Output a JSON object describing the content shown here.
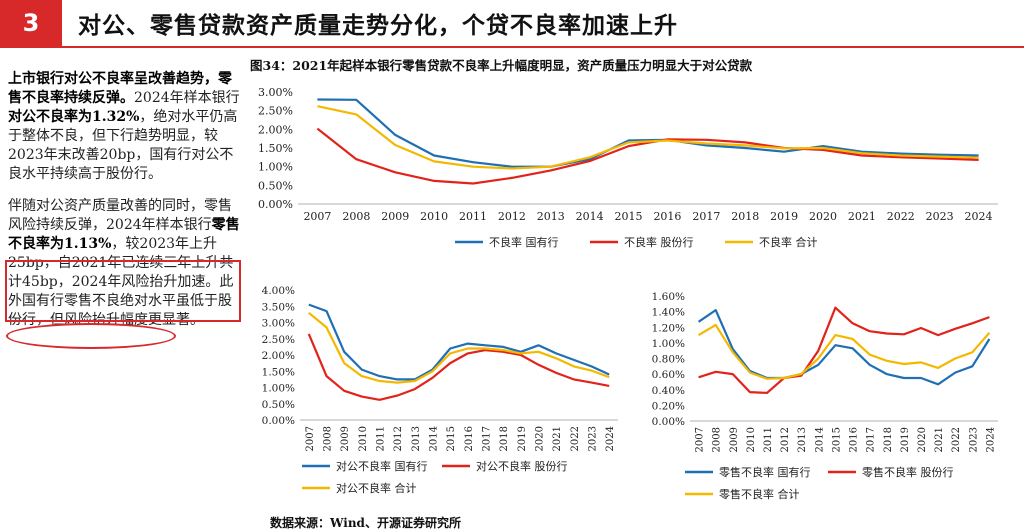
{
  "header": {
    "number": "3",
    "title": "对公、零售贷款资产质量走势分化，个贷不良率加速上升"
  },
  "text": {
    "p1_bold1": "上市银行对公不良率呈改善趋势，零售不良率持续反弹。",
    "p1_t1": "2024年样本银行",
    "p1_bold2": "对公不良率为1.32%",
    "p1_t2": "，绝对水平仍高于整体不良，但下行趋势明显，较2023年末改善20bp，国有行对公不良水平持续高于股份行。",
    "p2_t1": "伴随对公资产质量改善的同时，零售风险持续反弹，2024年样本银行",
    "p2_bold1": "零售不良率为1.13%",
    "p2_t2": "，较2023年上升25bp，自2021年已连续三年上升共计45bp，2024年风险抬升加速。此外国有行零售不良绝对水平虽低于股份行，但风险抬升幅度更显著。"
  },
  "figure_title": "图34：2021年起样本银行零售贷款不良率上升幅度明显，资产质量压力明显大于对公贷款",
  "source": "数据来源：Wind、开源证券研究所",
  "colors": {
    "state": "#1f6fb5",
    "joint": "#e2231a",
    "total": "#f4b800",
    "accent": "#d7282a"
  },
  "chart_data": [
    {
      "type": "line",
      "x": [
        "2007",
        "2008",
        "2009",
        "2010",
        "2011",
        "2012",
        "2013",
        "2014",
        "2015",
        "2016",
        "2017",
        "2018",
        "2019",
        "2020",
        "2021",
        "2022",
        "2023",
        "2024"
      ],
      "ylim": [
        0,
        3.0
      ],
      "yticks": [
        "0.00%",
        "0.50%",
        "1.00%",
        "1.50%",
        "2.00%",
        "2.50%",
        "3.00%"
      ],
      "series": [
        {
          "name": "不良率 国有行",
          "values": [
            2.8,
            2.79,
            1.85,
            1.3,
            1.12,
            1.0,
            1.0,
            1.2,
            1.7,
            1.72,
            1.57,
            1.5,
            1.4,
            1.55,
            1.4,
            1.35,
            1.32,
            1.3
          ]
        },
        {
          "name": "不良率 股份行",
          "values": [
            2.02,
            1.2,
            0.85,
            0.62,
            0.55,
            0.7,
            0.9,
            1.15,
            1.55,
            1.73,
            1.72,
            1.65,
            1.5,
            1.45,
            1.3,
            1.25,
            1.22,
            1.18
          ]
        },
        {
          "name": "不良率 合计",
          "values": [
            2.62,
            2.4,
            1.58,
            1.14,
            1.0,
            0.95,
            1.0,
            1.25,
            1.65,
            1.7,
            1.62,
            1.57,
            1.49,
            1.5,
            1.36,
            1.3,
            1.27,
            1.24
          ]
        }
      ],
      "legend": "bottom"
    },
    {
      "type": "line",
      "x": [
        "2007",
        "2008",
        "2009",
        "2010",
        "2011",
        "2012",
        "2013",
        "2014",
        "2015",
        "2016",
        "2017",
        "2018",
        "2019",
        "2020",
        "2021",
        "2022",
        "2023",
        "2024"
      ],
      "ylim": [
        0,
        4.0
      ],
      "yticks": [
        "0.00%",
        "0.50%",
        "1.00%",
        "1.50%",
        "2.00%",
        "2.50%",
        "3.00%",
        "3.50%",
        "4.00%"
      ],
      "series": [
        {
          "name": "对公不良率 国有行",
          "values": [
            3.55,
            3.35,
            2.1,
            1.55,
            1.35,
            1.25,
            1.25,
            1.55,
            2.2,
            2.35,
            2.3,
            2.25,
            2.1,
            2.3,
            2.05,
            1.85,
            1.65,
            1.4
          ]
        },
        {
          "name": "对公不良率 股份行",
          "values": [
            2.65,
            1.35,
            0.9,
            0.72,
            0.62,
            0.75,
            0.95,
            1.3,
            1.75,
            2.05,
            2.15,
            2.1,
            2.0,
            1.7,
            1.45,
            1.25,
            1.15,
            1.05
          ]
        },
        {
          "name": "对公不良率 合计",
          "values": [
            3.3,
            2.85,
            1.75,
            1.35,
            1.2,
            1.15,
            1.2,
            1.5,
            2.05,
            2.2,
            2.2,
            2.15,
            2.05,
            2.1,
            1.9,
            1.65,
            1.52,
            1.32
          ]
        }
      ],
      "legend": "bottom"
    },
    {
      "type": "line",
      "x": [
        "2007",
        "2008",
        "2009",
        "2010",
        "2011",
        "2012",
        "2013",
        "2014",
        "2015",
        "2016",
        "2017",
        "2018",
        "2019",
        "2020",
        "2021",
        "2022",
        "2023",
        "2024"
      ],
      "ylim": [
        0,
        1.6
      ],
      "yticks": [
        "0.00%",
        "0.20%",
        "0.40%",
        "0.60%",
        "0.80%",
        "1.00%",
        "1.20%",
        "1.40%",
        "1.60%"
      ],
      "series": [
        {
          "name": "零售不良率 国有行",
          "values": [
            1.27,
            1.42,
            0.92,
            0.64,
            0.55,
            0.55,
            0.6,
            0.72,
            0.97,
            0.93,
            0.72,
            0.6,
            0.55,
            0.55,
            0.47,
            0.62,
            0.7,
            1.05
          ]
        },
        {
          "name": "零售不良率 股份行",
          "values": [
            0.56,
            0.63,
            0.6,
            0.37,
            0.36,
            0.55,
            0.58,
            0.9,
            1.45,
            1.25,
            1.15,
            1.12,
            1.11,
            1.19,
            1.1,
            1.18,
            1.25,
            1.33
          ]
        },
        {
          "name": "零售不良率 合计",
          "values": [
            1.1,
            1.23,
            0.88,
            0.62,
            0.54,
            0.55,
            0.6,
            0.8,
            1.1,
            1.05,
            0.85,
            0.77,
            0.73,
            0.75,
            0.68,
            0.8,
            0.88,
            1.13
          ]
        }
      ],
      "legend": "bottom"
    }
  ]
}
